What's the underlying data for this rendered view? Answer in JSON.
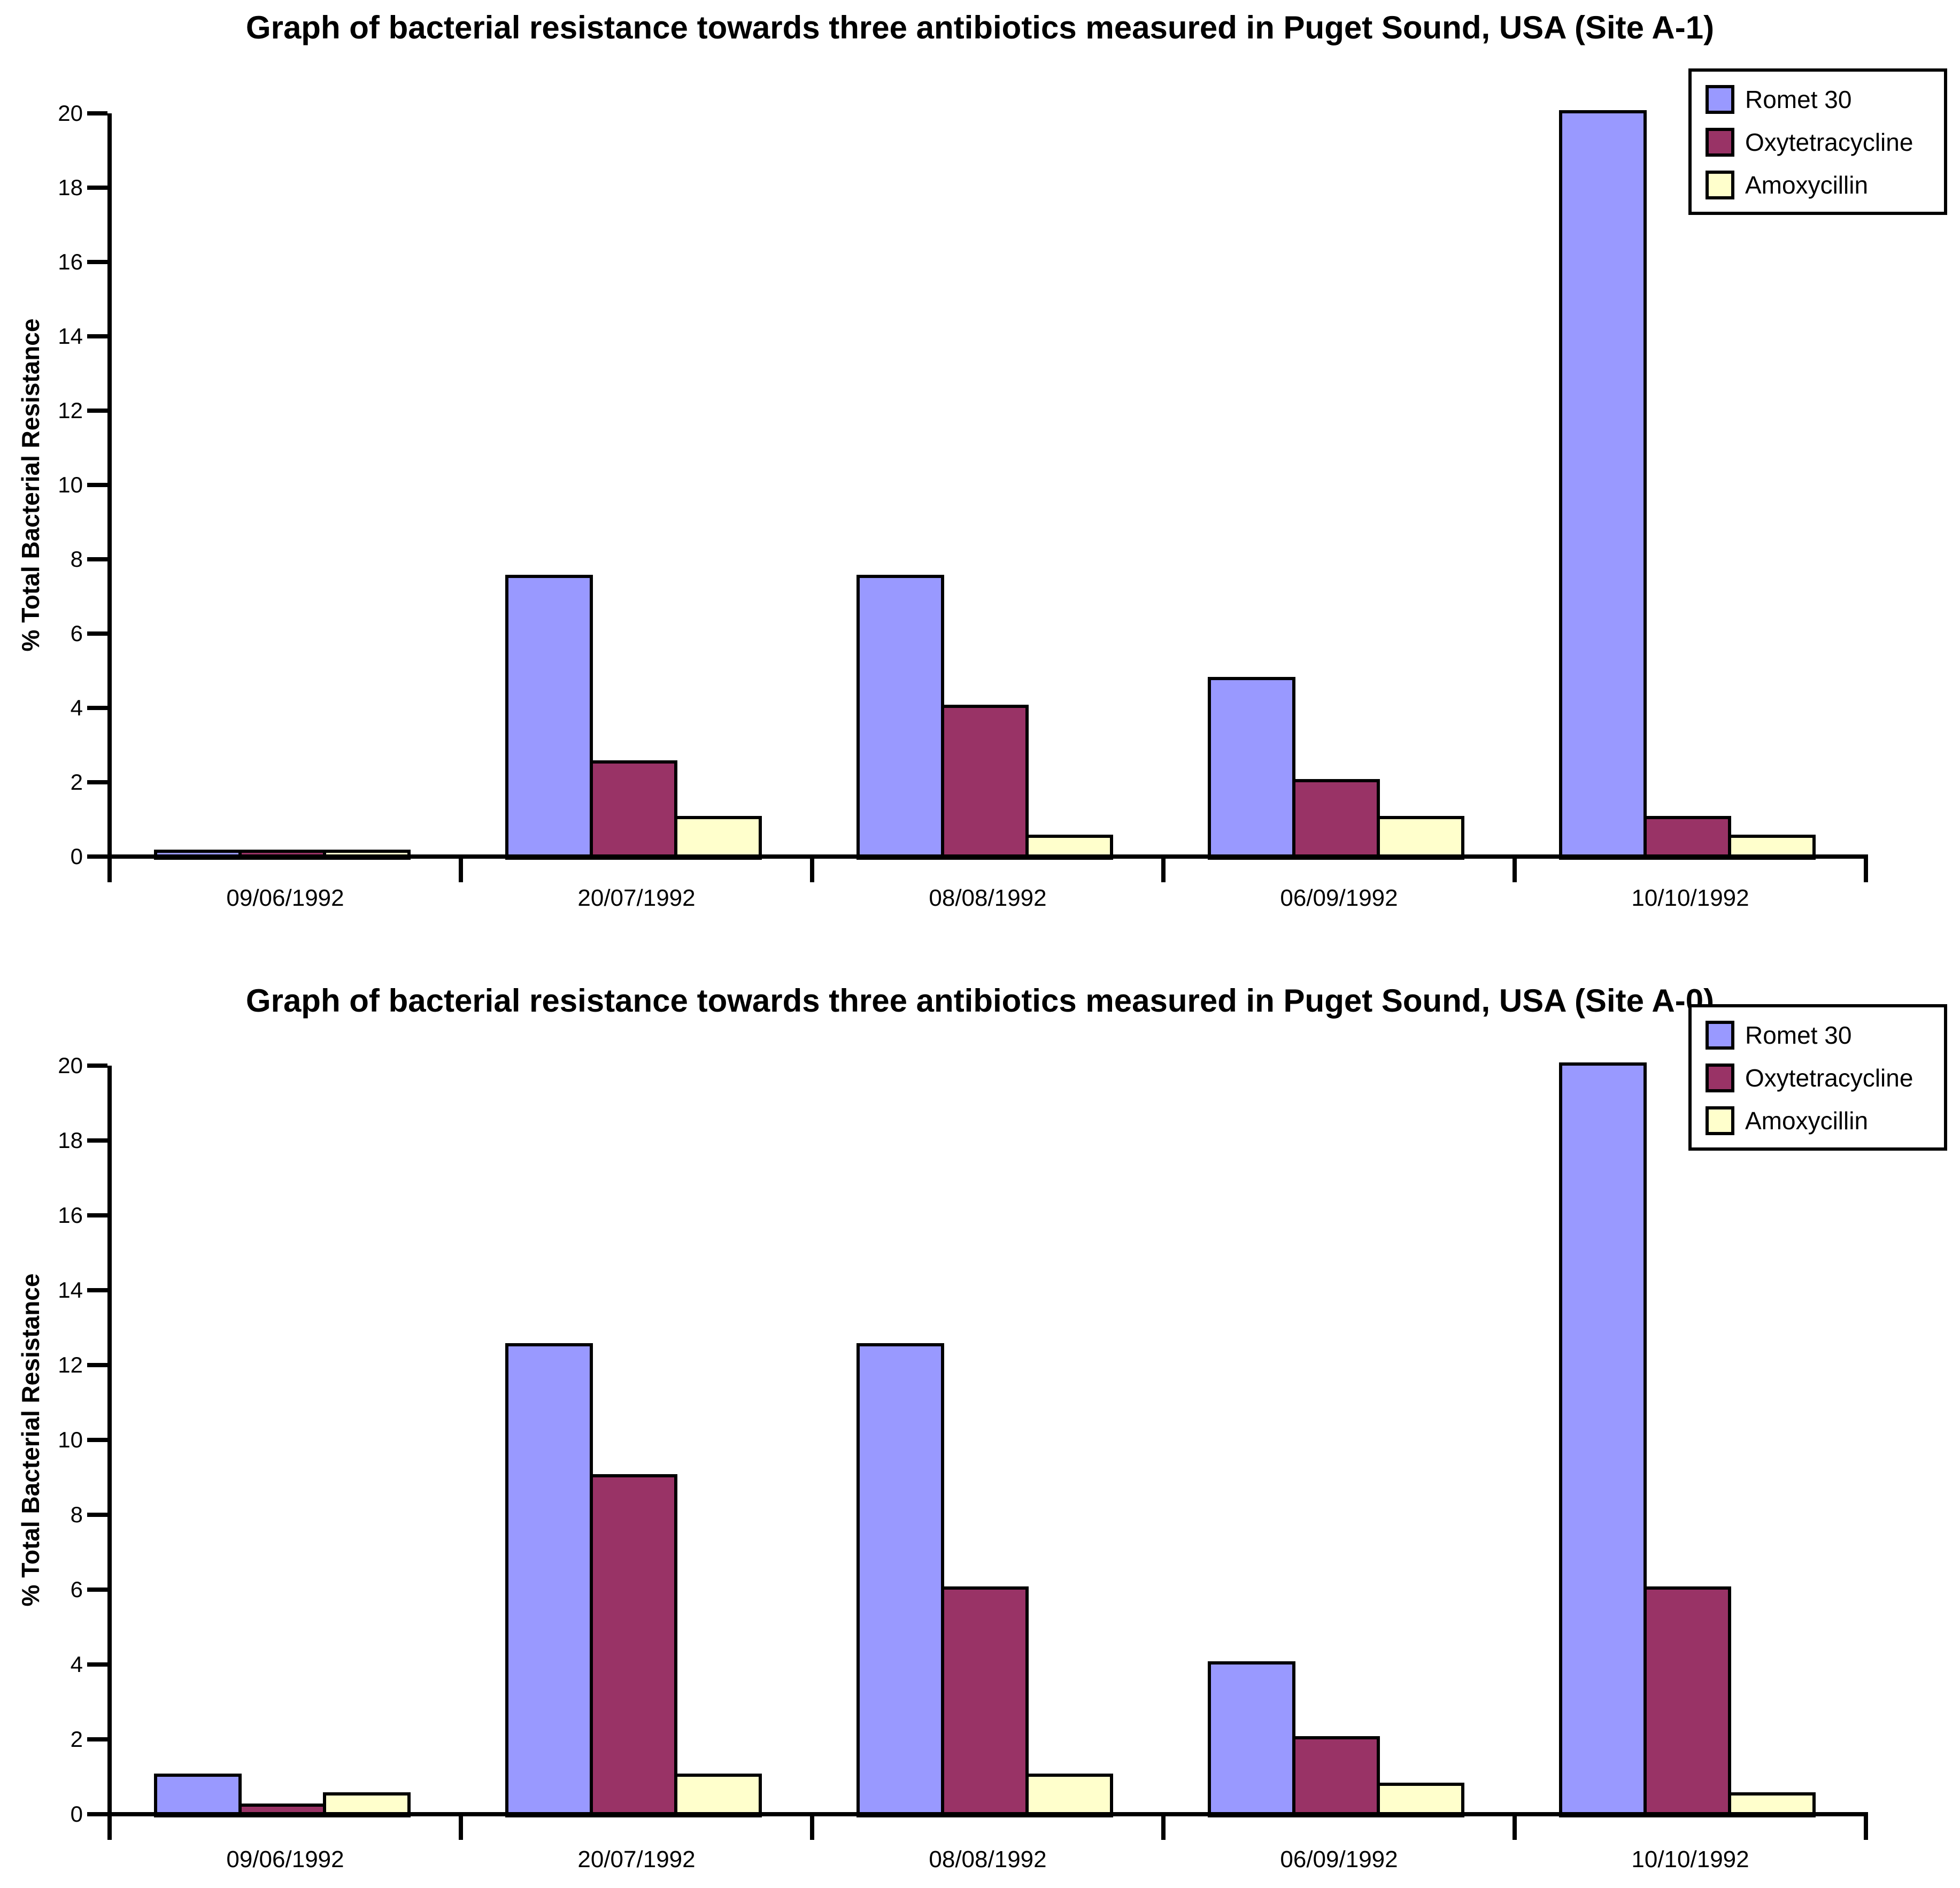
{
  "page": {
    "background": "#FFFFFF",
    "axis_color": "#000000",
    "bar_border_color": "#000000"
  },
  "chart_data": [
    {
      "type": "bar",
      "title": "Graph of bacterial resistance towards three antibiotics measured in  Puget Sound, USA (Site A-1)",
      "site": "Site A-1",
      "xlabel": "",
      "ylabel": "% Total Bacterial Resistance",
      "categories": [
        "09/06/1992",
        "20/07/1992",
        "08/08/1992",
        "06/09/1992",
        "10/10/1992"
      ],
      "series": [
        {
          "name": "Romet 30",
          "color": "#9999FF",
          "values": [
            0.1,
            7.5,
            7.5,
            4.75,
            20
          ]
        },
        {
          "name": "Oxytetracycline",
          "color": "#993366",
          "values": [
            0.1,
            2.5,
            4.0,
            2.0,
            1.0
          ]
        },
        {
          "name": "Amoxycillin",
          "color": "#FFFFCC",
          "values": [
            0.1,
            1.0,
            0.5,
            1.0,
            0.5
          ]
        }
      ],
      "ylim": [
        0,
        20
      ],
      "ytick_step": 2,
      "grid": false,
      "legend_position": "top-right"
    },
    {
      "type": "bar",
      "title": "Graph of bacterial resistance towards three antibiotics measured in  Puget Sound, USA (Site A-0)",
      "site": "Site A-0",
      "xlabel": "",
      "ylabel": "% Total Bacterial Resistance",
      "categories": [
        "09/06/1992",
        "20/07/1992",
        "08/08/1992",
        "06/09/1992",
        "10/10/1992"
      ],
      "series": [
        {
          "name": "Romet 30",
          "color": "#9999FF",
          "values": [
            1.0,
            12.5,
            12.5,
            4.0,
            20
          ]
        },
        {
          "name": "Oxytetracycline",
          "color": "#993366",
          "values": [
            0.2,
            9.0,
            6.0,
            2.0,
            6.0
          ]
        },
        {
          "name": "Amoxycillin",
          "color": "#FFFFCC",
          "values": [
            0.5,
            1.0,
            1.0,
            0.75,
            0.5
          ]
        }
      ],
      "ylim": [
        0,
        20
      ],
      "ytick_step": 2,
      "grid": false,
      "legend_position": "top-right"
    }
  ]
}
